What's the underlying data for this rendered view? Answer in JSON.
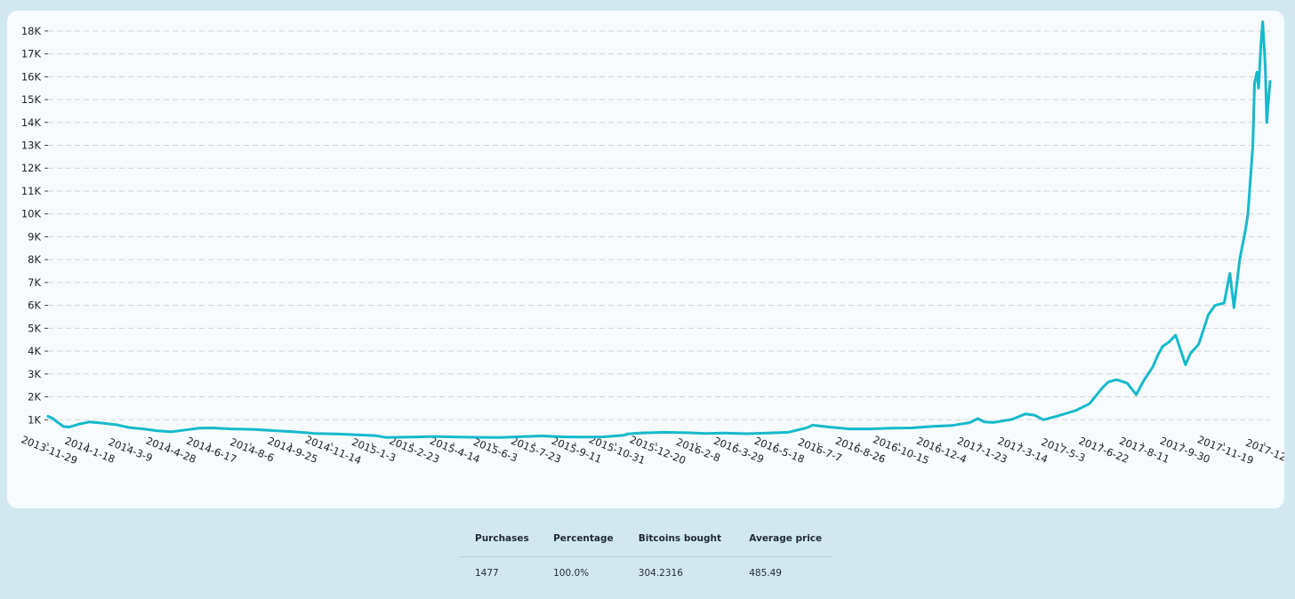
{
  "chart_data": {
    "type": "line",
    "title": "",
    "xlabel": "",
    "ylabel": "",
    "ylim": [
      0,
      18500
    ],
    "grid": true,
    "legend": "none",
    "line_color": "#16b9cb",
    "ytick_values": [
      1000,
      2000,
      3000,
      4000,
      5000,
      6000,
      7000,
      8000,
      9000,
      10000,
      11000,
      12000,
      13000,
      14000,
      15000,
      16000,
      17000,
      18000
    ],
    "ytick_labels": [
      "1K",
      "2K",
      "3K",
      "4K",
      "5K",
      "6K",
      "7K",
      "8K",
      "9K",
      "10K",
      "11K",
      "12K",
      "13K",
      "14K",
      "15K",
      "16K",
      "17K",
      "18K"
    ],
    "xtick_labels": [
      "2013-11-29",
      "2014-1-18",
      "2014-3-9",
      "2014-4-28",
      "2014-6-17",
      "2014-8-6",
      "2014-9-25",
      "2014-11-14",
      "2015-1-3",
      "2015-2-23",
      "2015-4-14",
      "2015-6-3",
      "2015-7-23",
      "2015-9-11",
      "2015-10-31",
      "2015-12-20",
      "2016-2-8",
      "2016-3-29",
      "2016-5-18",
      "2016-7-7",
      "2016-8-26",
      "2016-10-15",
      "2016-12-4",
      "2017-1-23",
      "2017-3-14",
      "2017-5-3",
      "2017-6-22",
      "2017-8-11",
      "2017-9-30",
      "2017-11-19",
      "2017-12"
    ],
    "series": [
      {
        "x": [
          "2013-11-29",
          "2013-12-5",
          "2013-12-10",
          "2013-12-18",
          "2013-12-25",
          "2014-1-5",
          "2014-1-18",
          "2014-2-1",
          "2014-2-20",
          "2014-3-9",
          "2014-3-25",
          "2014-4-10",
          "2014-4-28",
          "2014-5-15",
          "2014-6-1",
          "2014-6-17",
          "2014-7-10",
          "2014-8-6",
          "2014-9-1",
          "2014-9-25",
          "2014-10-20",
          "2014-11-14",
          "2014-12-10",
          "2015-1-3",
          "2015-1-15",
          "2015-2-23",
          "2015-3-15",
          "2015-4-14",
          "2015-5-10",
          "2015-6-3",
          "2015-7-1",
          "2015-7-23",
          "2015-8-20",
          "2015-9-11",
          "2015-10-5",
          "2015-10-31",
          "2015-11-5",
          "2015-11-20",
          "2015-12-20",
          "2016-1-15",
          "2016-2-8",
          "2016-3-1",
          "2016-3-29",
          "2016-4-25",
          "2016-5-18",
          "2016-6-10",
          "2016-6-17",
          "2016-7-7",
          "2016-8-1",
          "2016-8-26",
          "2016-9-20",
          "2016-10-15",
          "2016-11-10",
          "2016-12-4",
          "2016-12-25",
          "2017-1-4",
          "2017-1-12",
          "2017-1-23",
          "2017-2-15",
          "2017-3-3",
          "2017-3-14",
          "2017-3-25",
          "2017-4-10",
          "2017-5-3",
          "2017-5-20",
          "2017-6-5",
          "2017-6-12",
          "2017-6-22",
          "2017-7-5",
          "2017-7-16",
          "2017-7-25",
          "2017-8-5",
          "2017-8-11",
          "2017-8-17",
          "2017-8-25",
          "2017-9-2",
          "2017-9-14",
          "2017-9-20",
          "2017-9-30",
          "2017-10-12",
          "2017-10-20",
          "2017-10-31",
          "2017-11-7",
          "2017-11-12",
          "2017-11-19",
          "2017-11-26",
          "2017-11-29",
          "2017-12-1",
          "2017-12-5",
          "2017-12-7",
          "2017-12-10",
          "2017-12-12",
          "2017-12-15",
          "2017-12-17",
          "2017-12-20",
          "2017-12-22",
          "2017-12-24",
          "2017-12-26"
        ],
        "values": [
          1150,
          1050,
          900,
          700,
          680,
          800,
          900,
          860,
          780,
          650,
          600,
          520,
          470,
          550,
          630,
          640,
          600,
          580,
          520,
          470,
          400,
          380,
          340,
          300,
          220,
          250,
          270,
          240,
          230,
          225,
          260,
          290,
          250,
          240,
          250,
          320,
          380,
          420,
          450,
          430,
          400,
          420,
          390,
          420,
          450,
          650,
          760,
          680,
          600,
          600,
          630,
          640,
          710,
          750,
          870,
          1050,
          900,
          880,
          1020,
          1250,
          1200,
          1000,
          1150,
          1400,
          1700,
          2400,
          2650,
          2750,
          2600,
          2100,
          2700,
          3300,
          3800,
          4200,
          4400,
          4700,
          3400,
          3900,
          4300,
          5600,
          6000,
          6100,
          7400,
          5900,
          8000,
          9300,
          10000,
          11000,
          13000,
          15700,
          16200,
          15500,
          17500,
          18400,
          16500,
          14000,
          15000,
          15800
        ]
      }
    ]
  },
  "stats": {
    "headers": [
      "Purchases",
      "Percentage",
      "Bitcoins bought",
      "Average price"
    ],
    "values": [
      "1477",
      "100.0%",
      "304.2316",
      "485.49"
    ]
  }
}
